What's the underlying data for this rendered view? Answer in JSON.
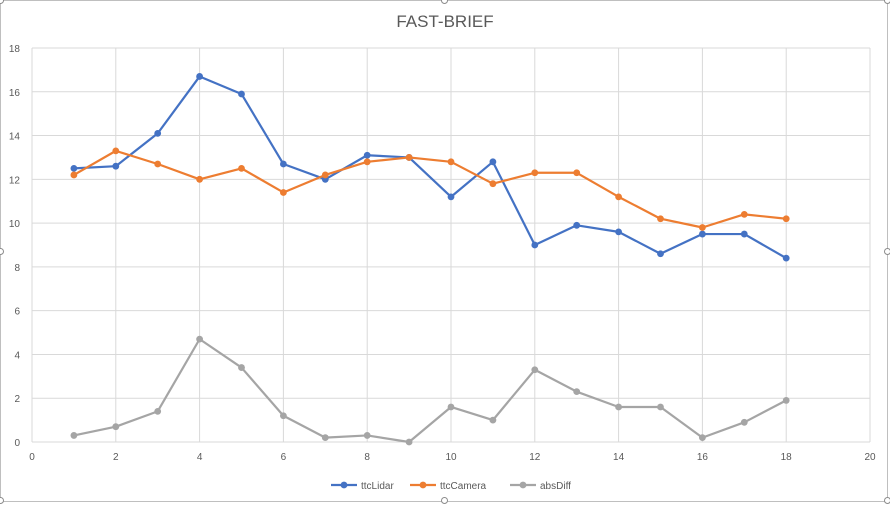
{
  "chart_data": {
    "type": "scatter",
    "title": "FAST-BRIEF",
    "xlabel": "",
    "ylabel": "",
    "xlim": [
      0,
      20
    ],
    "ylim": [
      0,
      18
    ],
    "x_ticks": [
      0,
      2,
      4,
      6,
      8,
      10,
      12,
      14,
      16,
      18,
      20
    ],
    "y_ticks": [
      0,
      2,
      4,
      6,
      8,
      10,
      12,
      14,
      16,
      18
    ],
    "grid": true,
    "legend_position": "bottom",
    "x": [
      1,
      2,
      3,
      4,
      5,
      6,
      7,
      8,
      9,
      10,
      11,
      12,
      13,
      14,
      15,
      16,
      17,
      18
    ],
    "series": [
      {
        "name": "ttcLidar",
        "color": "#4472c4",
        "values": [
          12.5,
          12.6,
          14.1,
          16.7,
          15.9,
          12.7,
          12.0,
          13.1,
          13.0,
          11.2,
          12.8,
          9.0,
          9.9,
          9.6,
          8.6,
          9.5,
          9.5,
          8.4
        ]
      },
      {
        "name": "ttcCamera",
        "color": "#ed7d31",
        "values": [
          12.2,
          13.3,
          12.7,
          12.0,
          12.5,
          11.4,
          12.2,
          12.8,
          13.0,
          12.8,
          11.8,
          12.3,
          12.3,
          11.2,
          10.2,
          9.8,
          10.4,
          10.2
        ]
      },
      {
        "name": "absDiff",
        "color": "#a5a5a5",
        "values": [
          0.3,
          0.7,
          1.4,
          4.7,
          3.4,
          1.2,
          0.2,
          0.3,
          0.0,
          1.6,
          1.0,
          3.3,
          2.3,
          1.6,
          1.6,
          0.2,
          0.9,
          1.9
        ]
      }
    ]
  }
}
